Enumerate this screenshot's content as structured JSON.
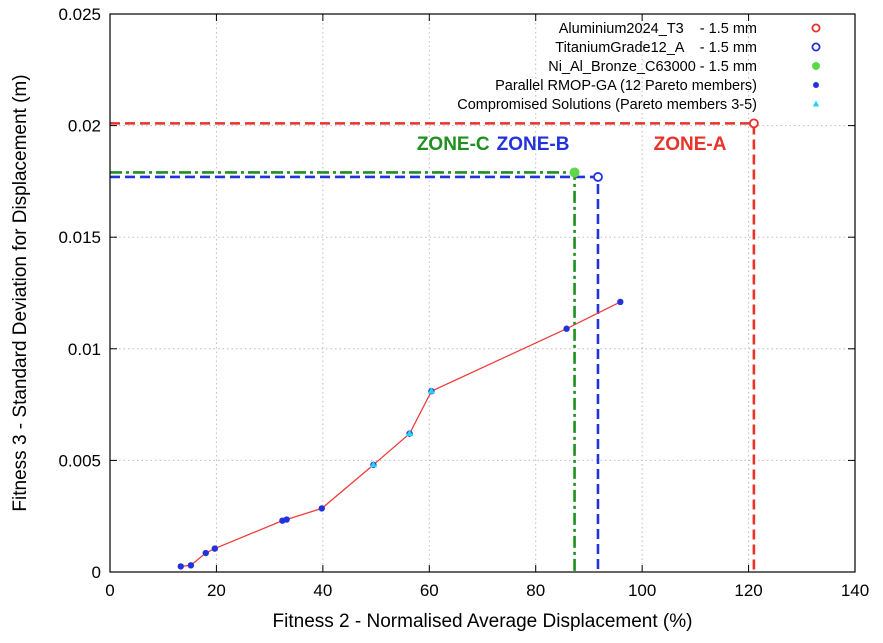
{
  "chart_data": {
    "type": "scatter",
    "title": "",
    "xlabel": "Fitness 2 - Normalised Average Displacement (%)",
    "ylabel": "Fitness 3 - Standard Deviation for Displacement (m)",
    "xlim": [
      0,
      140
    ],
    "ylim": [
      0,
      0.025
    ],
    "x_ticks": [
      0,
      20,
      40,
      60,
      80,
      100,
      120,
      140
    ],
    "y_ticks": [
      0,
      0.005,
      0.01,
      0.015,
      0.02,
      0.025
    ],
    "x_tick_labels": [
      "0",
      "20",
      "40",
      "60",
      "80",
      "100",
      "120",
      "140"
    ],
    "y_tick_labels": [
      "0",
      "0.005",
      "0.01",
      "0.015",
      "0.02",
      "0.025"
    ],
    "grid": true,
    "legend_position": "top-right",
    "series": [
      {
        "name": "Aluminium2024_T3    - 1.5 mm",
        "color": "#e8322a",
        "marker": "open-circle",
        "line": "dashed",
        "points": [
          [
            121,
            0.0201
          ]
        ]
      },
      {
        "name": "TitaniumGrade12_A    - 1.5 mm",
        "color": "#2233dd",
        "marker": "open-circle",
        "line": "dashed",
        "points": [
          [
            91.7,
            0.0177
          ]
        ]
      },
      {
        "name": "Ni_Al_Bronze_C63000 - 1.5 mm",
        "color": "#1f8f1f",
        "marker_color": "#5ed84a",
        "marker": "filled-circle",
        "line": "dash-dot",
        "points": [
          [
            87.3,
            0.0179
          ]
        ]
      },
      {
        "name": "Parallel RMOP-GA (12 Pareto members)",
        "color": "#2233dd",
        "line_color": "#f03c3c",
        "marker": "filled-dot",
        "points": [
          [
            13.3,
            0.00025
          ],
          [
            15.2,
            0.0003
          ],
          [
            18.0,
            0.00085
          ],
          [
            19.7,
            0.00105
          ],
          [
            32.4,
            0.0023
          ],
          [
            33.2,
            0.00235
          ],
          [
            39.8,
            0.00285
          ],
          [
            49.5,
            0.0048
          ],
          [
            56.3,
            0.0062
          ],
          [
            60.4,
            0.0081
          ],
          [
            85.8,
            0.0109
          ],
          [
            95.9,
            0.0121
          ]
        ]
      },
      {
        "name": "Compromised Solutions (Pareto members 3-5)",
        "color": "#29d3f0",
        "marker": "triangle",
        "points": [
          [
            49.5,
            0.0048
          ],
          [
            56.3,
            0.0062
          ],
          [
            60.4,
            0.0081
          ]
        ]
      }
    ],
    "annotations": [
      {
        "text": "ZONE-C",
        "x": 64.5,
        "y": 0.0189,
        "color": "#1f8f1f"
      },
      {
        "text": "ZONE-B",
        "x": 79.5,
        "y": 0.0189,
        "color": "#2233dd"
      },
      {
        "text": "ZONE-A",
        "x": 109,
        "y": 0.0189,
        "color": "#e8322a"
      }
    ]
  }
}
